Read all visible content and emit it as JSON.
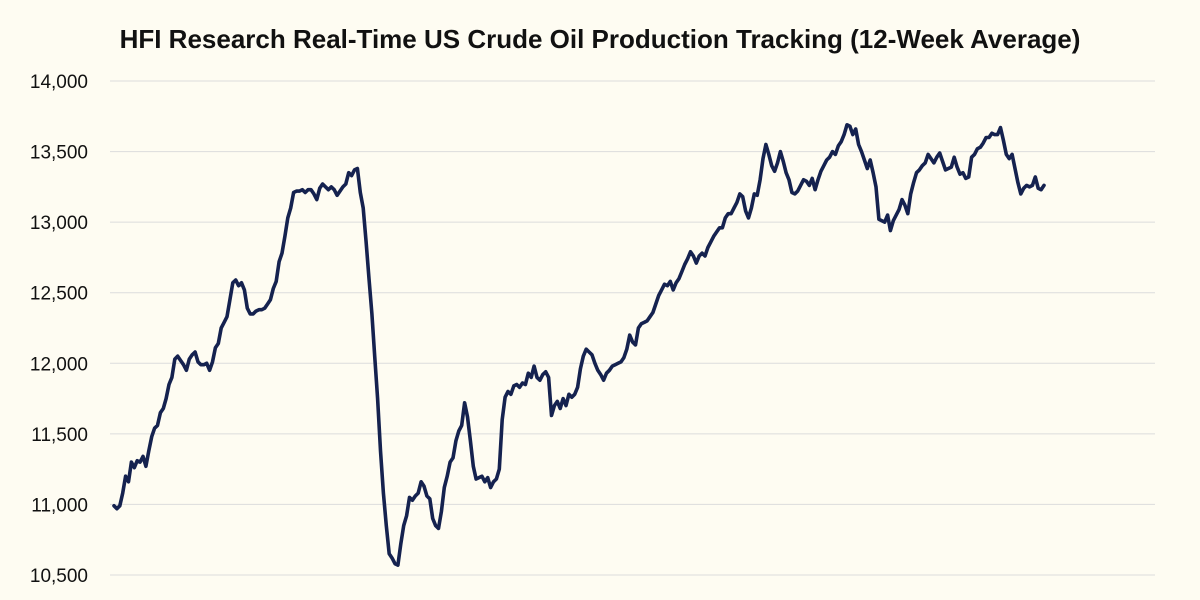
{
  "chart_data": {
    "type": "line",
    "title": "HFI Research Real-Time US Crude Oil Production Tracking (12-Week Average)",
    "xlabel": "",
    "ylabel": "",
    "ylim": [
      10500,
      14000
    ],
    "y_ticks": [
      14000,
      13500,
      13000,
      12500,
      12000,
      11500,
      11000,
      10500
    ],
    "y_tick_labels": [
      "14,000",
      "13,500",
      "13,000",
      "12,500",
      "12,000",
      "11,500",
      "11,000",
      "10,500"
    ],
    "grid": true,
    "legend": "none",
    "line_color": "#15224f",
    "series": [
      {
        "values": [
          10990,
          10970,
          10990,
          11080,
          11200,
          11160,
          11300,
          11260,
          11310,
          11300,
          11340,
          11270,
          11380,
          11480,
          11540,
          11560,
          11650,
          11680,
          11750,
          11850,
          11900,
          12030,
          12050,
          12020,
          11990,
          11950,
          12030,
          12060,
          12080,
          12010,
          11990,
          11990,
          12000,
          11950,
          12010,
          12110,
          12140,
          12250,
          12290,
          12330,
          12450,
          12570,
          12590,
          12550,
          12570,
          12520,
          12390,
          12350,
          12350,
          12370,
          12380,
          12380,
          12390,
          12420,
          12450,
          12530,
          12580,
          12720,
          12780,
          12900,
          13030,
          13100,
          13210,
          13220,
          13220,
          13230,
          13210,
          13230,
          13230,
          13200,
          13160,
          13240,
          13270,
          13250,
          13230,
          13250,
          13230,
          13190,
          13220,
          13250,
          13270,
          13350,
          13330,
          13370,
          13380,
          13210,
          13100,
          12860,
          12600,
          12350,
          12050,
          11750,
          11380,
          11080,
          10850,
          10650,
          10620,
          10580,
          10570,
          10720,
          10850,
          10920,
          11050,
          11030,
          11060,
          11080,
          11160,
          11130,
          11060,
          11040,
          10900,
          10850,
          10830,
          10950,
          11120,
          11200,
          11300,
          11330,
          11450,
          11520,
          11560,
          11720,
          11620,
          11450,
          11270,
          11180,
          11190,
          11200,
          11160,
          11190,
          11120,
          11160,
          11180,
          11250,
          11600,
          11760,
          11800,
          11780,
          11840,
          11850,
          11830,
          11860,
          11850,
          11930,
          11900,
          11980,
          11900,
          11880,
          11920,
          11940,
          11900,
          11630,
          11700,
          11730,
          11680,
          11750,
          11700,
          11780,
          11760,
          11780,
          11830,
          11960,
          12050,
          12100,
          12080,
          12060,
          12000,
          11950,
          11920,
          11880,
          11930,
          11950,
          11980,
          11990,
          12000,
          12010,
          12040,
          12100,
          12200,
          12150,
          12130,
          12250,
          12280,
          12290,
          12300,
          12330,
          12360,
          12420,
          12480,
          12520,
          12560,
          12550,
          12580,
          12520,
          12570,
          12600,
          12650,
          12700,
          12740,
          12790,
          12760,
          12710,
          12760,
          12780,
          12760,
          12820,
          12860,
          12900,
          12930,
          12960,
          12960,
          13030,
          13060,
          13060,
          13100,
          13140,
          13200,
          13180,
          13080,
          13030,
          13100,
          13200,
          13190,
          13300,
          13450,
          13550,
          13480,
          13400,
          13360,
          13420,
          13500,
          13430,
          13350,
          13300,
          13210,
          13200,
          13220,
          13260,
          13300,
          13290,
          13260,
          13310,
          13230,
          13300,
          13360,
          13400,
          13440,
          13460,
          13500,
          13480,
          13540,
          13570,
          13620,
          13690,
          13680,
          13620,
          13660,
          13550,
          13500,
          13440,
          13380,
          13440,
          13350,
          13250,
          13020,
          13010,
          13000,
          13050,
          12940,
          13010,
          13050,
          13090,
          13160,
          13120,
          13060,
          13200,
          13280,
          13350,
          13370,
          13400,
          13420,
          13480,
          13450,
          13420,
          13460,
          13490,
          13430,
          13370,
          13380,
          13390,
          13460,
          13390,
          13340,
          13350,
          13310,
          13320,
          13460,
          13480,
          13520,
          13530,
          13560,
          13600,
          13600,
          13630,
          13620,
          13620,
          13670,
          13580,
          13480,
          13450,
          13480,
          13380,
          13280,
          13200,
          13240,
          13260,
          13250,
          13260,
          13320,
          13240,
          13230,
          13260
        ]
      }
    ]
  }
}
